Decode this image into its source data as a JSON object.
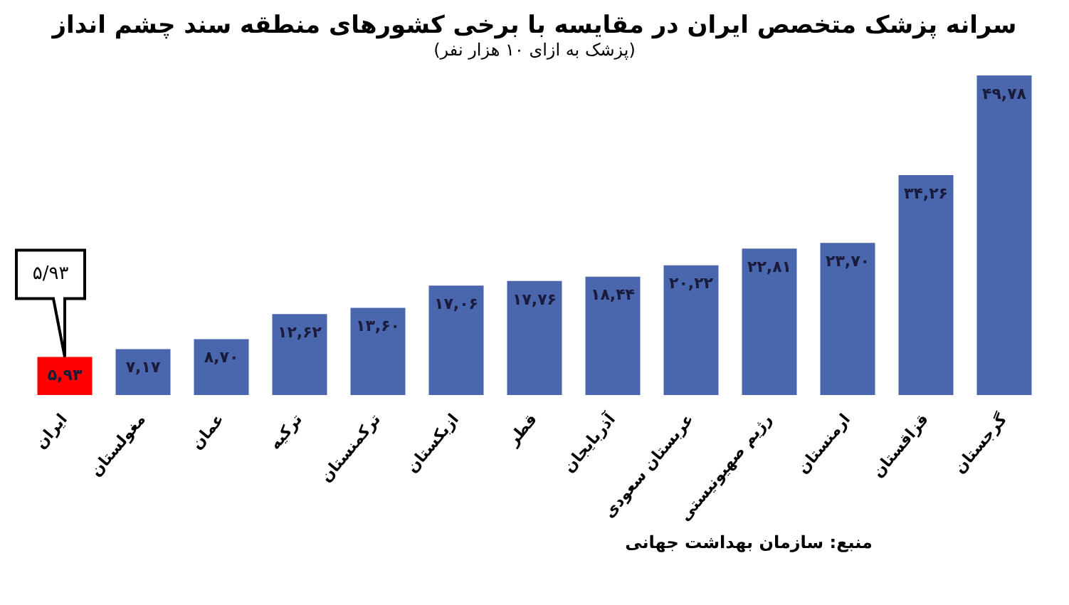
{
  "chart_data": {
    "type": "bar",
    "title": "سرانه پزشک متخصص ایران در مقایسه با برخی کشورهای منطقه سند چشم انداز",
    "subtitle": "(پزشک به ازای ۱۰ هزار نفر)",
    "categories": [
      "ایران",
      "مغولستان",
      "عمان",
      "ترکیه",
      "ترکمنستان",
      "ازبکستان",
      "قطر",
      "آذربایجان",
      "عربستان سعودی",
      "رژیم صهیونیستی",
      "ارمنستان",
      "قزاقستان",
      "گرجستان"
    ],
    "values": [
      5.93,
      7.17,
      8.7,
      12.62,
      13.6,
      17.06,
      17.76,
      18.44,
      20.22,
      22.81,
      23.7,
      34.26,
      49.78
    ],
    "colors": [
      "#ff0000",
      "#4a66ac",
      "#4a66ac",
      "#4a66ac",
      "#4a66ac",
      "#4a66ac",
      "#4a66ac",
      "#4a66ac",
      "#4a66ac",
      "#4a66ac",
      "#4a66ac",
      "#4a66ac",
      "#4a66ac"
    ],
    "value_labels": [
      "۵,۹۳",
      "۷,۱۷",
      "۸,۷۰",
      "۱۲,۶۲",
      "۱۳,۶۰",
      "۱۷,۰۶",
      "۱۷,۷۶",
      "۱۸,۴۴",
      "۲۰,۲۲",
      "۲۲,۸۱",
      "۲۳,۷۰",
      "۳۴,۲۶",
      "۴۹,۷۸"
    ],
    "annotations": [
      "۵/۹۳",
      "منبع: سازمان بهداشت جهانی"
    ],
    "grid": false,
    "legend": false
  }
}
